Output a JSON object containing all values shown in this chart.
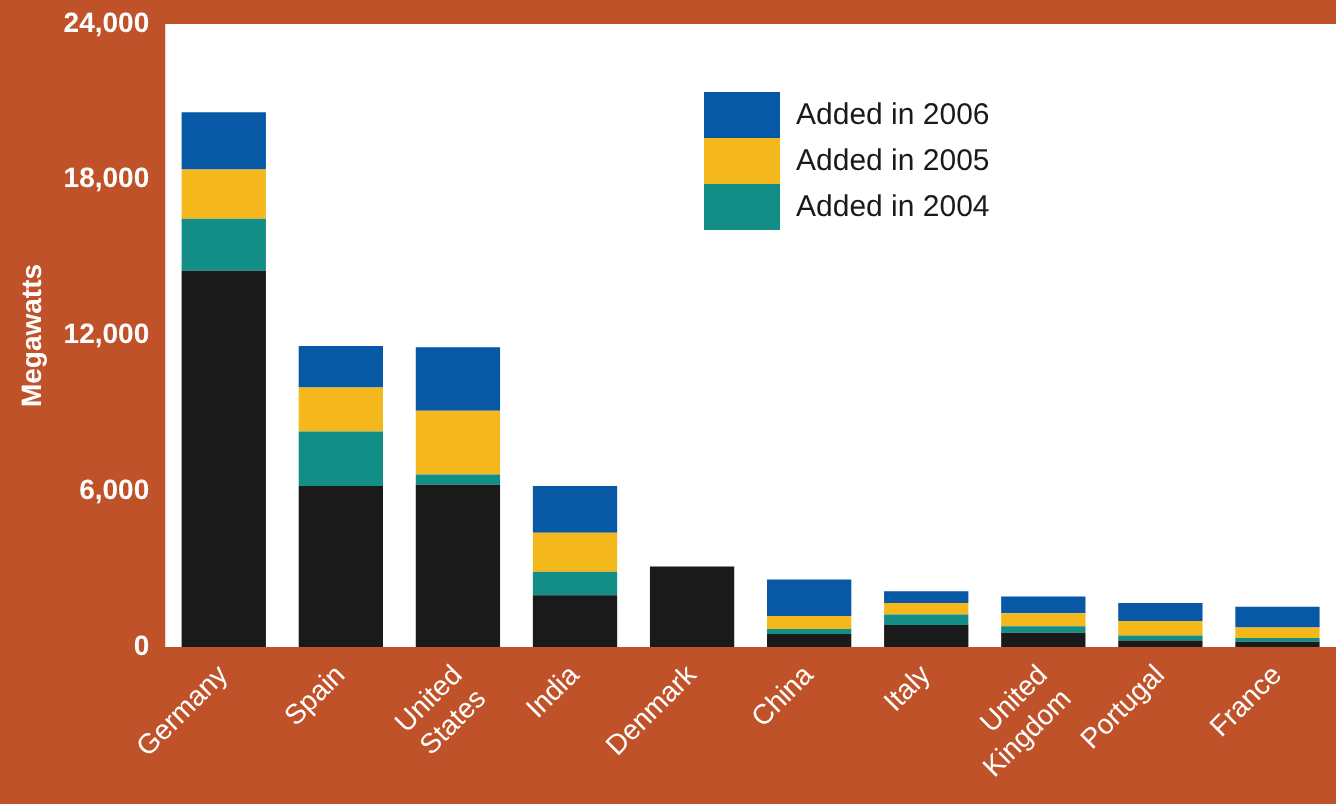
{
  "chart_data": {
    "type": "bar",
    "stacked": true,
    "ylabel": "Megawatts",
    "categories": [
      "Germany",
      "Spain",
      "United States",
      "India",
      "Denmark",
      "China",
      "Italy",
      "United Kingdom",
      "Portugal",
      "France"
    ],
    "series": [
      {
        "color": "#1a1a1a",
        "values": [
          14500,
          6200,
          6250,
          2000,
          3100,
          500,
          850,
          550,
          250,
          200
        ]
      },
      {
        "name": "Added in 2004",
        "color": "#138e86",
        "values": [
          2000,
          2100,
          400,
          900,
          0,
          200,
          400,
          250,
          200,
          150
        ]
      },
      {
        "name": "Added in 2005",
        "color": "#f5b81c",
        "values": [
          1900,
          1700,
          2450,
          1500,
          0,
          500,
          450,
          500,
          550,
          400
        ]
      },
      {
        "name": "Added in 2006",
        "color": "#0758a5",
        "values": [
          2200,
          1600,
          2450,
          1800,
          0,
          1400,
          450,
          650,
          700,
          800
        ]
      }
    ],
    "ylim": [
      0,
      24000
    ],
    "yticks": [
      0,
      {
        "value": 6000,
        "label": "6,000"
      },
      {
        "value": 12000,
        "label": "12,000"
      },
      {
        "value": 18000,
        "label": "18,000"
      },
      {
        "value": 24000,
        "label": "24,000"
      }
    ],
    "grid": false,
    "legend": "top right"
  }
}
